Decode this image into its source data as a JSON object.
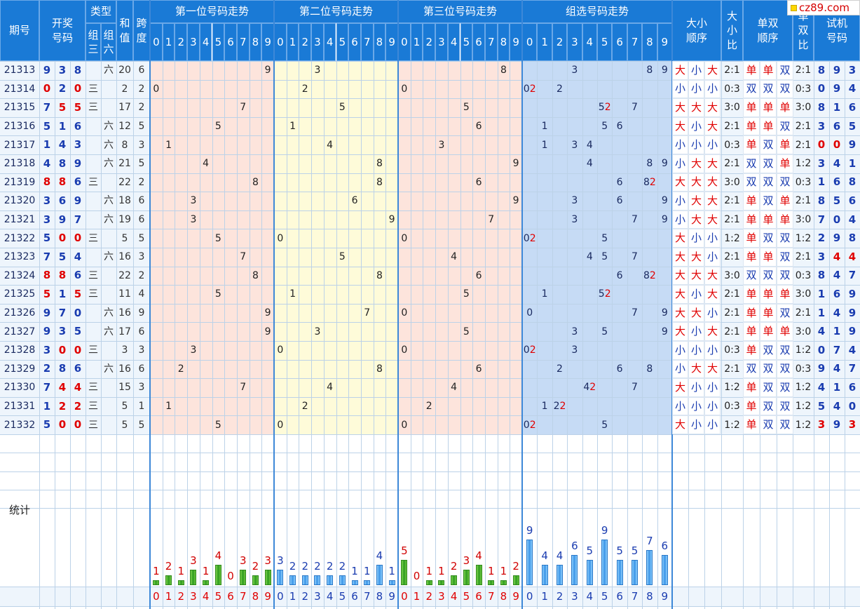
{
  "site_logo": "cz89.com",
  "headers": {
    "period": "期号",
    "draw": "开奖号码",
    "type": "类型",
    "type_z3": "组三",
    "type_z6": "组六",
    "sum": "和值",
    "span": "跨度",
    "pos1": "第一位号码走势",
    "pos2": "第二位号码走势",
    "pos3": "第三位号码走势",
    "group": "组选号码走势",
    "bigsmall_order": "大小顺序",
    "bigsmall_ratio": "大小比",
    "oddeven_order": "单双顺序",
    "oddeven_ratio": "单双比",
    "test": "试机号码",
    "digits": [
      "0",
      "1",
      "2",
      "3",
      "4",
      "5",
      "6",
      "7",
      "8",
      "9"
    ]
  },
  "rows": [
    {
      "period": "21313",
      "draw": [
        "9",
        "3",
        "8"
      ],
      "type": "六",
      "sum": "20",
      "span": "6",
      "p1": 9,
      "p2": 3,
      "p3": 8,
      "group": {
        "3": "3",
        "8": "8",
        "9": "9"
      },
      "bs": [
        "大",
        "小",
        "大"
      ],
      "bsr": "2:1",
      "oe": [
        "单",
        "单",
        "双"
      ],
      "oer": "2:1",
      "test": [
        "8",
        "9",
        "3"
      ],
      "testred": [
        false,
        false,
        false
      ]
    },
    {
      "period": "21314",
      "draw": [
        "0",
        "2",
        "0"
      ],
      "type": "三",
      "sum": "2",
      "span": "2",
      "p1": 0,
      "p2": 2,
      "p3": 0,
      "group": {
        "0": "02",
        "2": "2"
      },
      "bs": [
        "小",
        "小",
        "小"
      ],
      "bsr": "0:3",
      "oe": [
        "双",
        "双",
        "双"
      ],
      "oer": "0:3",
      "test": [
        "0",
        "9",
        "4"
      ],
      "testred": [
        false,
        false,
        false
      ]
    },
    {
      "period": "21315",
      "draw": [
        "7",
        "5",
        "5"
      ],
      "type": "三",
      "sum": "17",
      "span": "2",
      "p1": 7,
      "p2": 5,
      "p3": 5,
      "group": {
        "5": "52",
        "7": "7"
      },
      "bs": [
        "大",
        "大",
        "大"
      ],
      "bsr": "3:0",
      "oe": [
        "单",
        "单",
        "单"
      ],
      "oer": "3:0",
      "test": [
        "8",
        "1",
        "6"
      ],
      "testred": [
        false,
        false,
        false
      ]
    },
    {
      "period": "21316",
      "draw": [
        "5",
        "1",
        "6"
      ],
      "type": "六",
      "sum": "12",
      "span": "5",
      "p1": 5,
      "p2": 1,
      "p3": 6,
      "group": {
        "1": "1",
        "5": "5",
        "6": "6"
      },
      "bs": [
        "大",
        "小",
        "大"
      ],
      "bsr": "2:1",
      "oe": [
        "单",
        "单",
        "双"
      ],
      "oer": "2:1",
      "test": [
        "3",
        "6",
        "5"
      ],
      "testred": [
        false,
        false,
        false
      ]
    },
    {
      "period": "21317",
      "draw": [
        "1",
        "4",
        "3"
      ],
      "type": "六",
      "sum": "8",
      "span": "3",
      "p1": 1,
      "p2": 4,
      "p3": 3,
      "group": {
        "1": "1",
        "3": "3",
        "4": "4"
      },
      "bs": [
        "小",
        "小",
        "小"
      ],
      "bsr": "0:3",
      "oe": [
        "单",
        "双",
        "单"
      ],
      "oer": "2:1",
      "test": [
        "0",
        "0",
        "9"
      ],
      "testred": [
        true,
        true,
        false
      ]
    },
    {
      "period": "21318",
      "draw": [
        "4",
        "8",
        "9"
      ],
      "type": "六",
      "sum": "21",
      "span": "5",
      "p1": 4,
      "p2": 8,
      "p3": 9,
      "group": {
        "4": "4",
        "8": "8",
        "9": "9"
      },
      "bs": [
        "小",
        "大",
        "大"
      ],
      "bsr": "2:1",
      "oe": [
        "双",
        "双",
        "单"
      ],
      "oer": "1:2",
      "test": [
        "3",
        "4",
        "1"
      ],
      "testred": [
        false,
        false,
        false
      ]
    },
    {
      "period": "21319",
      "draw": [
        "8",
        "8",
        "6"
      ],
      "type": "三",
      "sum": "22",
      "span": "2",
      "p1": 8,
      "p2": 8,
      "p3": 6,
      "group": {
        "6": "6",
        "8": "82"
      },
      "bs": [
        "大",
        "大",
        "大"
      ],
      "bsr": "3:0",
      "oe": [
        "双",
        "双",
        "双"
      ],
      "oer": "0:3",
      "test": [
        "1",
        "6",
        "8"
      ],
      "testred": [
        false,
        false,
        false
      ]
    },
    {
      "period": "21320",
      "draw": [
        "3",
        "6",
        "9"
      ],
      "type": "六",
      "sum": "18",
      "span": "6",
      "p1": 3,
      "p2": 6,
      "p3": 9,
      "group": {
        "3": "3",
        "6": "6",
        "9": "9"
      },
      "bs": [
        "小",
        "大",
        "大"
      ],
      "bsr": "2:1",
      "oe": [
        "单",
        "双",
        "单"
      ],
      "oer": "2:1",
      "test": [
        "8",
        "5",
        "6"
      ],
      "testred": [
        false,
        false,
        false
      ]
    },
    {
      "period": "21321",
      "draw": [
        "3",
        "9",
        "7"
      ],
      "type": "六",
      "sum": "19",
      "span": "6",
      "p1": 3,
      "p2": 9,
      "p3": 7,
      "group": {
        "3": "3",
        "7": "7",
        "9": "9"
      },
      "bs": [
        "小",
        "大",
        "大"
      ],
      "bsr": "2:1",
      "oe": [
        "单",
        "单",
        "单"
      ],
      "oer": "3:0",
      "test": [
        "7",
        "0",
        "4"
      ],
      "testred": [
        false,
        false,
        false
      ]
    },
    {
      "period": "21322",
      "draw": [
        "5",
        "0",
        "0"
      ],
      "type": "三",
      "sum": "5",
      "span": "5",
      "p1": 5,
      "p2": 0,
      "p3": 0,
      "group": {
        "0": "02",
        "5": "5"
      },
      "bs": [
        "大",
        "小",
        "小"
      ],
      "bsr": "1:2",
      "oe": [
        "单",
        "双",
        "双"
      ],
      "oer": "1:2",
      "test": [
        "2",
        "9",
        "8"
      ],
      "testred": [
        false,
        false,
        false
      ]
    },
    {
      "period": "21323",
      "draw": [
        "7",
        "5",
        "4"
      ],
      "type": "六",
      "sum": "16",
      "span": "3",
      "p1": 7,
      "p2": 5,
      "p3": 4,
      "group": {
        "4": "4",
        "5": "5",
        "7": "7"
      },
      "bs": [
        "大",
        "大",
        "小"
      ],
      "bsr": "2:1",
      "oe": [
        "单",
        "单",
        "双"
      ],
      "oer": "2:1",
      "test": [
        "3",
        "4",
        "4"
      ],
      "testred": [
        false,
        true,
        true
      ]
    },
    {
      "period": "21324",
      "draw": [
        "8",
        "8",
        "6"
      ],
      "type": "三",
      "sum": "22",
      "span": "2",
      "p1": 8,
      "p2": 8,
      "p3": 6,
      "group": {
        "6": "6",
        "8": "82"
      },
      "bs": [
        "大",
        "大",
        "大"
      ],
      "bsr": "3:0",
      "oe": [
        "双",
        "双",
        "双"
      ],
      "oer": "0:3",
      "test": [
        "8",
        "4",
        "7"
      ],
      "testred": [
        false,
        false,
        false
      ]
    },
    {
      "period": "21325",
      "draw": [
        "5",
        "1",
        "5"
      ],
      "type": "三",
      "sum": "11",
      "span": "4",
      "p1": 5,
      "p2": 1,
      "p3": 5,
      "group": {
        "1": "1",
        "5": "52"
      },
      "bs": [
        "大",
        "小",
        "大"
      ],
      "bsr": "2:1",
      "oe": [
        "单",
        "单",
        "单"
      ],
      "oer": "3:0",
      "test": [
        "1",
        "6",
        "9"
      ],
      "testred": [
        false,
        false,
        false
      ]
    },
    {
      "period": "21326",
      "draw": [
        "9",
        "7",
        "0"
      ],
      "type": "六",
      "sum": "16",
      "span": "9",
      "p1": 9,
      "p2": 7,
      "p3": 0,
      "group": {
        "0": "0",
        "7": "7",
        "9": "9"
      },
      "bs": [
        "大",
        "大",
        "小"
      ],
      "bsr": "2:1",
      "oe": [
        "单",
        "单",
        "双"
      ],
      "oer": "2:1",
      "test": [
        "1",
        "4",
        "9"
      ],
      "testred": [
        false,
        false,
        false
      ]
    },
    {
      "period": "21327",
      "draw": [
        "9",
        "3",
        "5"
      ],
      "type": "六",
      "sum": "17",
      "span": "6",
      "p1": 9,
      "p2": 3,
      "p3": 5,
      "group": {
        "3": "3",
        "5": "5",
        "9": "9"
      },
      "bs": [
        "大",
        "小",
        "大"
      ],
      "bsr": "2:1",
      "oe": [
        "单",
        "单",
        "单"
      ],
      "oer": "3:0",
      "test": [
        "4",
        "1",
        "9"
      ],
      "testred": [
        false,
        false,
        false
      ]
    },
    {
      "period": "21328",
      "draw": [
        "3",
        "0",
        "0"
      ],
      "type": "三",
      "sum": "3",
      "span": "3",
      "p1": 3,
      "p2": 0,
      "p3": 0,
      "group": {
        "0": "02",
        "3": "3"
      },
      "bs": [
        "小",
        "小",
        "小"
      ],
      "bsr": "0:3",
      "oe": [
        "单",
        "双",
        "双"
      ],
      "oer": "1:2",
      "test": [
        "0",
        "7",
        "4"
      ],
      "testred": [
        false,
        false,
        false
      ]
    },
    {
      "period": "21329",
      "draw": [
        "2",
        "8",
        "6"
      ],
      "type": "六",
      "sum": "16",
      "span": "6",
      "p1": 2,
      "p2": 8,
      "p3": 6,
      "group": {
        "2": "2",
        "6": "6",
        "8": "8"
      },
      "bs": [
        "小",
        "大",
        "大"
      ],
      "bsr": "2:1",
      "oe": [
        "双",
        "双",
        "双"
      ],
      "oer": "0:3",
      "test": [
        "9",
        "4",
        "7"
      ],
      "testred": [
        false,
        false,
        false
      ]
    },
    {
      "period": "21330",
      "draw": [
        "7",
        "4",
        "4"
      ],
      "type": "三",
      "sum": "15",
      "span": "3",
      "p1": 7,
      "p2": 4,
      "p3": 4,
      "group": {
        "4": "42",
        "7": "7"
      },
      "bs": [
        "大",
        "小",
        "小"
      ],
      "bsr": "1:2",
      "oe": [
        "单",
        "双",
        "双"
      ],
      "oer": "1:2",
      "test": [
        "4",
        "1",
        "6"
      ],
      "testred": [
        false,
        false,
        false
      ]
    },
    {
      "period": "21331",
      "draw": [
        "1",
        "2",
        "2"
      ],
      "type": "三",
      "sum": "5",
      "span": "1",
      "p1": 1,
      "p2": 2,
      "p3": 2,
      "group": {
        "1": "1",
        "2": "22"
      },
      "bs": [
        "小",
        "小",
        "小"
      ],
      "bsr": "0:3",
      "oe": [
        "单",
        "双",
        "双"
      ],
      "oer": "1:2",
      "test": [
        "5",
        "4",
        "0"
      ],
      "testred": [
        false,
        false,
        false
      ]
    },
    {
      "period": "21332",
      "draw": [
        "5",
        "0",
        "0"
      ],
      "type": "三",
      "sum": "5",
      "span": "5",
      "p1": 5,
      "p2": 0,
      "p3": 0,
      "group": {
        "0": "02",
        "5": "5"
      },
      "bs": [
        "大",
        "小",
        "小"
      ],
      "bsr": "1:2",
      "oe": [
        "单",
        "双",
        "双"
      ],
      "oer": "1:2",
      "test": [
        "3",
        "9",
        "3"
      ],
      "testred": [
        true,
        false,
        true
      ]
    }
  ],
  "stats": {
    "label": "统计",
    "pos1": [
      1,
      2,
      1,
      3,
      1,
      4,
      0,
      3,
      2,
      3
    ],
    "pos2": [
      3,
      2,
      2,
      2,
      2,
      2,
      1,
      1,
      4,
      1
    ],
    "pos3": [
      5,
      0,
      1,
      1,
      2,
      3,
      4,
      1,
      1,
      2
    ],
    "group": [
      9,
      4,
      4,
      6,
      5,
      9,
      5,
      5,
      7,
      6
    ]
  },
  "colors": {
    "header_bg": "#1a7ad6",
    "pos1_bg": "#fde4dc",
    "pos2_bg": "#fefbd9",
    "pos3_bg": "#fde4dc",
    "group_bg": "#c6dbf5",
    "row_bg": "#eef5fc",
    "draw_red": "#e00000",
    "draw_blue": "#1a3cb0",
    "big_red": "#e00000",
    "small_blue": "#1a3cb0"
  }
}
